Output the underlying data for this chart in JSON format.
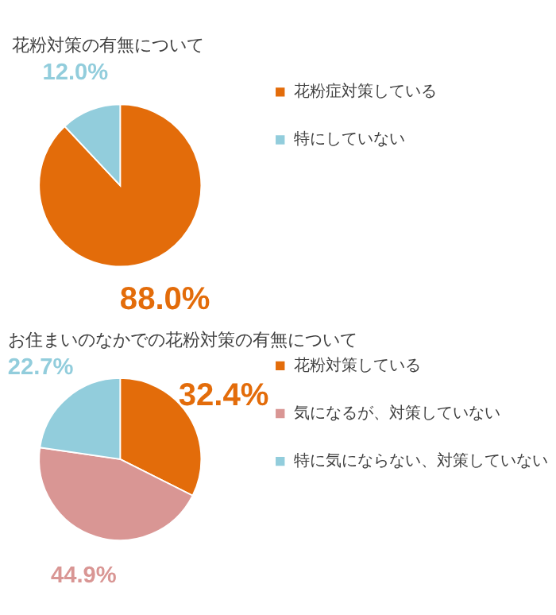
{
  "chart_data": [
    {
      "type": "pie",
      "title": "花粉対策の有無について",
      "categories": [
        "花粉症対策している",
        "特にしていない"
      ],
      "values": [
        88.0,
        12.0
      ],
      "colors": [
        "#e36c0a",
        "#92cddc"
      ],
      "value_labels": [
        "88.0%",
        "12.0%"
      ],
      "legend": "right"
    },
    {
      "type": "pie",
      "title": "お住まいのなかでの花粉対策の有無について",
      "categories": [
        "花粉対策している",
        "気になるが、対策していない",
        "特に気にならない、対策していない"
      ],
      "values": [
        32.4,
        44.9,
        22.7
      ],
      "colors": [
        "#e36c0a",
        "#d99694",
        "#92cddc"
      ],
      "value_labels": [
        "32.4%",
        "44.9%",
        "22.7%"
      ],
      "legend": "right"
    }
  ]
}
